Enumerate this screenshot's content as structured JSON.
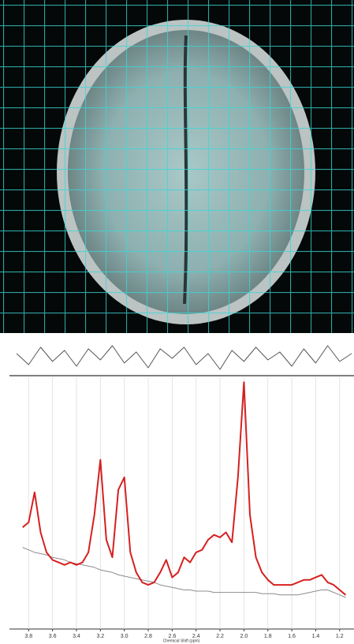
{
  "chart_data": [
    {
      "type": "line",
      "xlabel": "Chemical Shift (ppm)",
      "x": [
        3.85,
        3.8,
        3.75,
        3.7,
        3.65,
        3.6,
        3.55,
        3.5,
        3.45,
        3.4,
        3.35,
        3.3,
        3.25,
        3.2,
        3.15,
        3.1,
        3.05,
        3.0,
        2.95,
        2.9,
        2.85,
        2.8,
        2.75,
        2.7,
        2.65,
        2.6,
        2.55,
        2.5,
        2.45,
        2.4,
        2.35,
        2.3,
        2.25,
        2.2,
        2.15,
        2.1,
        2.05,
        2.0,
        1.95,
        1.9,
        1.85,
        1.8,
        1.75,
        1.7,
        1.65,
        1.6,
        1.55,
        1.5,
        1.45,
        1.4,
        1.35,
        1.3,
        1.25,
        1.2,
        1.15
      ],
      "series": [
        {
          "color": "#d62020",
          "values": [
            40,
            42,
            54,
            38,
            30,
            27,
            26,
            25,
            26,
            25,
            26,
            30,
            45,
            67,
            35,
            28,
            55,
            60,
            30,
            22,
            18,
            17,
            18,
            22,
            27,
            20,
            22,
            28,
            26,
            30,
            31,
            35,
            37,
            36,
            38,
            34,
            60,
            98,
            45,
            28,
            22,
            19,
            17,
            17,
            17,
            17,
            18,
            19,
            19,
            20,
            21,
            18,
            17,
            15,
            13
          ]
        },
        {
          "color": "#8c8c8c",
          "values": [
            32,
            31,
            30,
            29.5,
            29,
            28,
            27.5,
            27,
            26,
            25.5,
            25,
            24.5,
            24,
            23,
            22.5,
            22,
            21,
            20.5,
            20,
            19.5,
            19,
            18.5,
            18,
            17,
            16.5,
            16,
            15.5,
            15,
            15,
            14.5,
            14.5,
            14.5,
            14,
            14,
            14,
            14,
            14,
            14,
            14,
            14,
            13.5,
            13.5,
            13.5,
            13,
            13,
            13,
            13,
            13.5,
            14,
            14.5,
            15,
            15,
            14,
            13,
            12
          ]
        }
      ],
      "xlim": [
        3.96,
        1.08
      ],
      "ylim": [
        0,
        100
      ],
      "xticks": [
        3.8,
        3.6,
        3.4,
        3.2,
        {
          "value": 3,
          "label": "3.0"
        },
        2.8,
        2.6,
        2.4,
        2.2,
        {
          "value": 2,
          "label": "2.0"
        },
        1.8,
        1.6,
        1.4,
        1.2
      ],
      "grid": true
    },
    {
      "type": "line",
      "x": [
        3.9,
        3.8,
        3.7,
        3.6,
        3.5,
        3.4,
        3.3,
        3.2,
        3.1,
        3.0,
        2.9,
        2.8,
        2.7,
        2.6,
        2.5,
        2.4,
        2.3,
        2.2,
        2.1,
        2.0,
        1.9,
        1.8,
        1.7,
        1.6,
        1.5,
        1.4,
        1.3,
        1.2,
        1.1
      ],
      "series": [
        {
          "color": "#555555",
          "values": [
            0.2,
            -0.5,
            0.6,
            -0.3,
            0.4,
            -0.6,
            0.5,
            -0.2,
            0.7,
            -0.4,
            0.3,
            -0.7,
            0.5,
            -0.1,
            0.6,
            -0.5,
            0.2,
            -0.8,
            0.4,
            -0.3,
            0.6,
            -0.2,
            0.3,
            -0.6,
            0.5,
            -0.4,
            0.7,
            -0.3,
            0.2
          ]
        }
      ],
      "xlim": [
        3.96,
        1.08
      ],
      "ylim": [
        -1,
        1
      ]
    }
  ]
}
